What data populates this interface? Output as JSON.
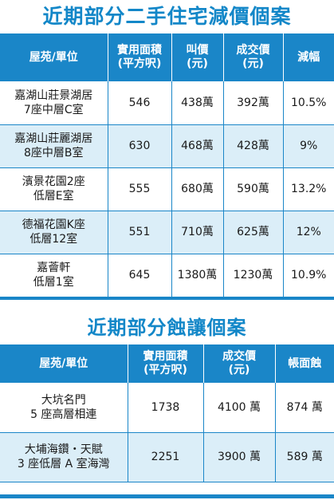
{
  "table1": {
    "title": "近期部分二手住宅減價個案",
    "headers": {
      "estate_l1": "屋苑/單位",
      "area_l1": "實用面積",
      "area_l2": "(平方呎)",
      "ask_l1": "叫價",
      "ask_l2": "(元)",
      "deal_l1": "成交價",
      "deal_l2": "(元)",
      "cut_l1": "減幅"
    },
    "rows": [
      {
        "estate_l1": "嘉湖山莊景湖居",
        "estate_l2": "7座中層C室",
        "area": "546",
        "ask": "438萬",
        "deal": "392萬",
        "cut": "10.5%"
      },
      {
        "estate_l1": "嘉湖山莊麗湖居",
        "estate_l2": "8座中層B室",
        "area": "630",
        "ask": "468萬",
        "deal": "428萬",
        "cut": "9%"
      },
      {
        "estate_l1": "濱景花園2座",
        "estate_l2": "低層E室",
        "area": "555",
        "ask": "680萬",
        "deal": "590萬",
        "cut": "13.2%"
      },
      {
        "estate_l1": "德福花園K座",
        "estate_l2": "低層12室",
        "area": "551",
        "ask": "710萬",
        "deal": "625萬",
        "cut": "12%"
      },
      {
        "estate_l1": "嘉薈軒",
        "estate_l2": "低層1室",
        "area": "645",
        "ask": "1380萬",
        "deal": "1230萬",
        "cut": "10.9%"
      }
    ]
  },
  "table2": {
    "title": "近期部分蝕讓個案",
    "headers": {
      "estate_l1": "屋苑/單位",
      "area_l1": "實用面積",
      "area_l2": "(平方呎)",
      "deal_l1": "成交價",
      "deal_l2": "(元)",
      "loss_l1": "帳面蝕"
    },
    "rows": [
      {
        "estate_l1": "大坑名門",
        "estate_l2": "5 座高層相連",
        "area": "1738",
        "deal": "4100 萬",
        "loss": "874 萬"
      },
      {
        "estate_l1": "大埔海鑽・天賦",
        "estate_l2": "3 座低層 A 室海灣",
        "area": "2251",
        "deal": "3900 萬",
        "loss": "589 萬"
      }
    ]
  },
  "colors": {
    "accent": "#1a86c8",
    "title": "#1387c8",
    "row_alt": "#dbeef8"
  }
}
